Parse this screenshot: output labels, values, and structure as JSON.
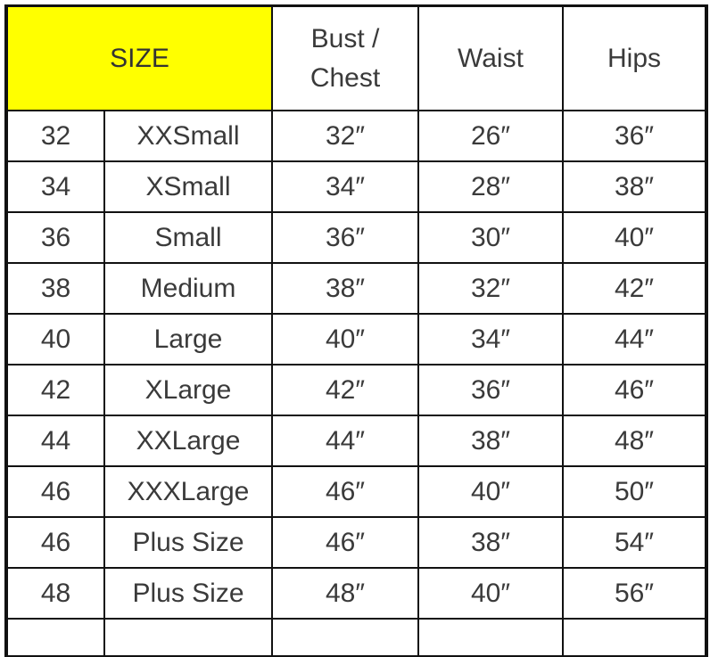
{
  "header": {
    "size": "SIZE",
    "bust_line1": "Bust /",
    "bust_line2": "Chest",
    "waist": "Waist",
    "hips": "Hips"
  },
  "colors": {
    "size_header_bg": "#ffff00",
    "border": "#111111",
    "text": "#3a3a3a"
  },
  "rows": [
    {
      "num": "32",
      "name": "XXSmall",
      "bust": "32″",
      "waist": "26″",
      "hips": "36″"
    },
    {
      "num": "34",
      "name": "XSmall",
      "bust": "34″",
      "waist": "28″",
      "hips": "38″"
    },
    {
      "num": "36",
      "name": "Small",
      "bust": "36″",
      "waist": "30″",
      "hips": "40″"
    },
    {
      "num": "38",
      "name": "Medium",
      "bust": "38″",
      "waist": "32″",
      "hips": "42″"
    },
    {
      "num": "40",
      "name": "Large",
      "bust": "40″",
      "waist": "34″",
      "hips": "44″"
    },
    {
      "num": "42",
      "name": "XLarge",
      "bust": "42″",
      "waist": "36″",
      "hips": "46″"
    },
    {
      "num": "44",
      "name": "XXLarge",
      "bust": "44″",
      "waist": "38″",
      "hips": "48″"
    },
    {
      "num": "46",
      "name": "XXXLarge",
      "bust": "46″",
      "waist": "40″",
      "hips": "50″"
    },
    {
      "num": "46",
      "name": "Plus Size",
      "bust": "46″",
      "waist": "38″",
      "hips": "54″"
    },
    {
      "num": "48",
      "name": "Plus Size",
      "bust": "48″",
      "waist": "40″",
      "hips": "56″"
    }
  ]
}
